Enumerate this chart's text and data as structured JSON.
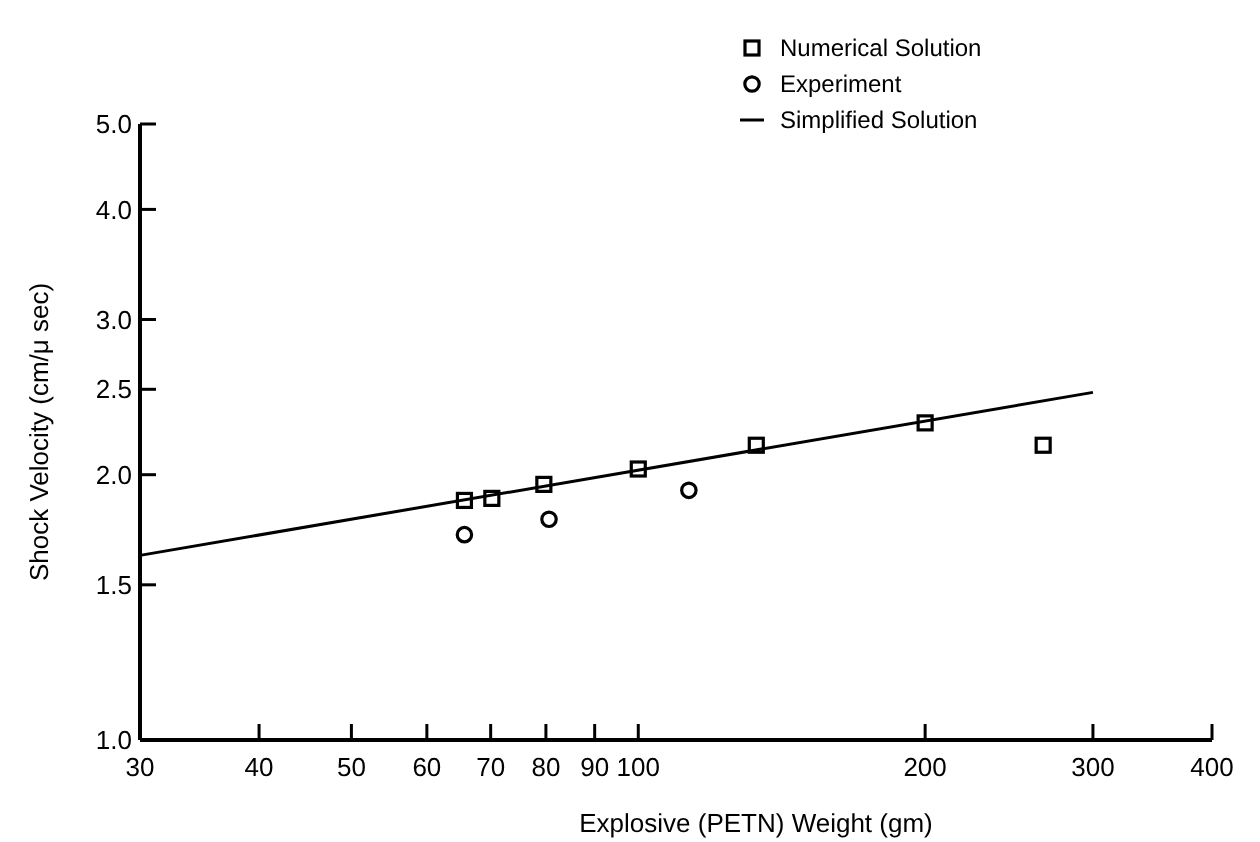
{
  "chart_data": {
    "type": "scatter",
    "xlabel": "Explosive (PETN) Weight (gm)",
    "ylabel": "Shock Velocity (cm/μ sec)",
    "log": "xy",
    "grid": false,
    "legend": "top right",
    "xlim": [
      30,
      400
    ],
    "xticks": [
      30,
      40,
      50,
      60,
      70,
      80,
      90,
      100,
      200,
      300,
      400
    ],
    "ylim": [
      1,
      5
    ],
    "yticks": [
      {
        "value": 1,
        "label": "1.0"
      },
      {
        "value": 1.5,
        "label": "1.5"
      },
      {
        "value": 2,
        "label": "2.0"
      },
      {
        "value": 2.5,
        "label": "2.5"
      },
      {
        "value": 3,
        "label": "3.0"
      },
      {
        "value": 4,
        "label": "4.0"
      },
      {
        "value": 5,
        "label": "5.0"
      }
    ],
    "series": [
      {
        "name": "Numerical Solution",
        "marker": "square",
        "color": "#000000",
        "x": [
          65.7,
          70.2,
          79.6,
          100,
          133,
          200,
          266
        ],
        "values": [
          1.87,
          1.88,
          1.95,
          2.03,
          2.16,
          2.29,
          2.16
        ]
      },
      {
        "name": "Experiment",
        "marker": "circle",
        "color": "#000000",
        "x": [
          65.7,
          80.6,
          113
        ],
        "values": [
          1.71,
          1.78,
          1.92
        ]
      },
      {
        "name": "Simplified Solution",
        "type": "line",
        "marker": "none",
        "line_style": "solid",
        "color": "#000000",
        "x": [
          30,
          300
        ],
        "values": [
          1.62,
          2.48
        ]
      }
    ]
  }
}
